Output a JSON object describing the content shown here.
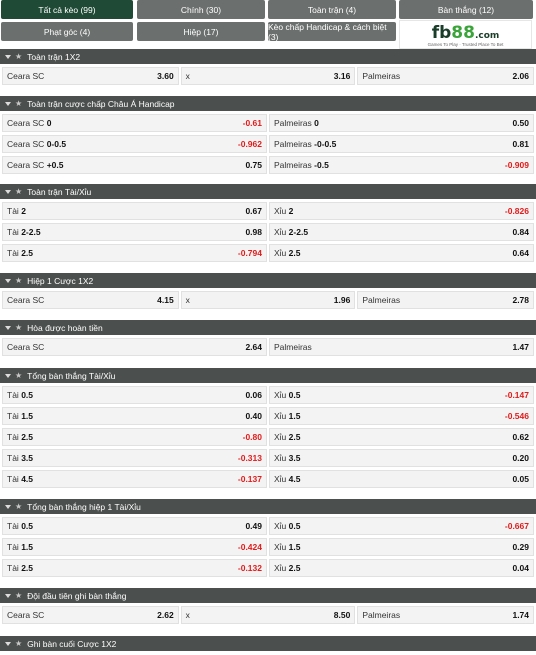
{
  "tabs": [
    {
      "label": "Tất cả kèo (99)",
      "active": true
    },
    {
      "label": "Chính (30)"
    },
    {
      "label": "Toàn trận (4)"
    },
    {
      "label": "Bàn thắng (12)"
    },
    {
      "label": "Phạt góc (4)"
    },
    {
      "label": "Hiệp (17)"
    },
    {
      "label": "Kèo chấp Handicap & cách biệt (3)"
    }
  ],
  "logo": {
    "brand_main": "fb88",
    "brand_fb": "fb",
    "brand_88": "88",
    "brand_com": ".com",
    "tagline": "Games To Play · Trusted Place To Bet"
  },
  "sections": [
    {
      "title": "Toàn trận 1X2",
      "layout": "three",
      "rows": [
        [
          {
            "label": "Ceara SC",
            "odd": "3.60"
          },
          {
            "label": "x",
            "odd": "3.16"
          },
          {
            "label": "Palmeiras",
            "odd": "2.06"
          }
        ]
      ]
    },
    {
      "title": "Toàn trận cược chấp Châu Á Handicap",
      "layout": "two",
      "rows": [
        [
          {
            "label": "Ceara SC",
            "line": "0",
            "odd": "-0.61"
          },
          {
            "label": "Palmeiras",
            "line": "0",
            "odd": "0.50"
          }
        ],
        [
          {
            "label": "Ceara SC",
            "line": "0-0.5",
            "odd": "-0.962"
          },
          {
            "label": "Palmeiras",
            "line": "-0-0.5",
            "odd": "0.81"
          }
        ],
        [
          {
            "label": "Ceara SC",
            "line": "+0.5",
            "odd": "0.75"
          },
          {
            "label": "Palmeiras",
            "line": "-0.5",
            "odd": "-0.909"
          }
        ]
      ]
    },
    {
      "title": "Toàn trận Tài/Xỉu",
      "layout": "two",
      "rows": [
        [
          {
            "label": "Tài",
            "line": "2",
            "odd": "0.67"
          },
          {
            "label": "Xỉu",
            "line": "2",
            "odd": "-0.826"
          }
        ],
        [
          {
            "label": "Tài",
            "line": "2-2.5",
            "odd": "0.98"
          },
          {
            "label": "Xỉu",
            "line": "2-2.5",
            "odd": "0.84"
          }
        ],
        [
          {
            "label": "Tài",
            "line": "2.5",
            "odd": "-0.794"
          },
          {
            "label": "Xỉu",
            "line": "2.5",
            "odd": "0.64"
          }
        ]
      ]
    },
    {
      "title": "Hiệp 1 Cược 1X2",
      "layout": "three",
      "rows": [
        [
          {
            "label": "Ceara SC",
            "odd": "4.15"
          },
          {
            "label": "x",
            "odd": "1.96"
          },
          {
            "label": "Palmeiras",
            "odd": "2.78"
          }
        ]
      ]
    },
    {
      "title": "Hòa được hoàn tiền",
      "layout": "two",
      "rows": [
        [
          {
            "label": "Ceara SC",
            "odd": "2.64"
          },
          {
            "label": "Palmeiras",
            "odd": "1.47"
          }
        ]
      ]
    },
    {
      "title": "Tổng bàn thắng Tài/Xỉu",
      "layout": "two",
      "rows": [
        [
          {
            "label": "Tài",
            "line": "0.5",
            "odd": "0.06"
          },
          {
            "label": "Xỉu",
            "line": "0.5",
            "odd": "-0.147"
          }
        ],
        [
          {
            "label": "Tài",
            "line": "1.5",
            "odd": "0.40"
          },
          {
            "label": "Xỉu",
            "line": "1.5",
            "odd": "-0.546"
          }
        ],
        [
          {
            "label": "Tài",
            "line": "2.5",
            "odd": "-0.80"
          },
          {
            "label": "Xỉu",
            "line": "2.5",
            "odd": "0.62"
          }
        ],
        [
          {
            "label": "Tài",
            "line": "3.5",
            "odd": "-0.313"
          },
          {
            "label": "Xỉu",
            "line": "3.5",
            "odd": "0.20"
          }
        ],
        [
          {
            "label": "Tài",
            "line": "4.5",
            "odd": "-0.137"
          },
          {
            "label": "Xỉu",
            "line": "4.5",
            "odd": "0.05"
          }
        ]
      ]
    },
    {
      "title": "Tổng bàn thắng hiệp 1 Tài/Xỉu",
      "layout": "two",
      "rows": [
        [
          {
            "label": "Tài",
            "line": "0.5",
            "odd": "0.49"
          },
          {
            "label": "Xỉu",
            "line": "0.5",
            "odd": "-0.667"
          }
        ],
        [
          {
            "label": "Tài",
            "line": "1.5",
            "odd": "-0.424"
          },
          {
            "label": "Xỉu",
            "line": "1.5",
            "odd": "0.29"
          }
        ],
        [
          {
            "label": "Tài",
            "line": "2.5",
            "odd": "-0.132"
          },
          {
            "label": "Xỉu",
            "line": "2.5",
            "odd": "0.04"
          }
        ]
      ]
    },
    {
      "title": "Đội đầu tiên ghi bàn thắng",
      "layout": "three",
      "rows": [
        [
          {
            "label": "Ceara SC",
            "odd": "2.62"
          },
          {
            "label": "x",
            "odd": "8.50"
          },
          {
            "label": "Palmeiras",
            "odd": "1.74"
          }
        ]
      ]
    },
    {
      "title": "Ghi bàn cuối Cược 1X2",
      "layout": "three",
      "rows": []
    }
  ],
  "colors": {
    "header_bg": "#4b4f4d",
    "tab_bg": "#6b6f6d",
    "tab_active_bg": "#1f4a36",
    "negative_odd": "#e21b1b",
    "cell_bg": "#f3f3f3"
  },
  "icons": {
    "collapse": "chevron-down-icon",
    "favorite": "star-icon"
  }
}
